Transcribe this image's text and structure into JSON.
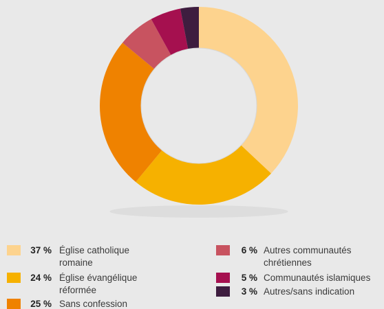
{
  "chart_data": {
    "type": "pie",
    "title": "",
    "donut": true,
    "legend_placement": "bottom",
    "slices": [
      {
        "label_line1": "Église catholique",
        "label_line2": "romaine",
        "pct_text": "37 %",
        "value": 37,
        "color": "#fdd38e"
      },
      {
        "label_line1": "Église évangélique",
        "label_line2": "réformée",
        "pct_text": "24 %",
        "value": 24,
        "color": "#f6b100"
      },
      {
        "label_line1": "Sans confession",
        "label_line2": "",
        "pct_text": "25 %",
        "value": 25,
        "color": "#ef8200"
      },
      {
        "label_line1": "Autres communautés",
        "label_line2": "chrétiennes",
        "pct_text": "6 %",
        "value": 6,
        "color": "#c85360"
      },
      {
        "label_line1": "Communautés islamiques",
        "label_line2": "",
        "pct_text": "5 %",
        "value": 5,
        "color": "#a5104f"
      },
      {
        "label_line1": "Autres/sans indication",
        "label_line2": "",
        "pct_text": "3 %",
        "value": 3,
        "color": "#3e1d3f"
      }
    ]
  }
}
